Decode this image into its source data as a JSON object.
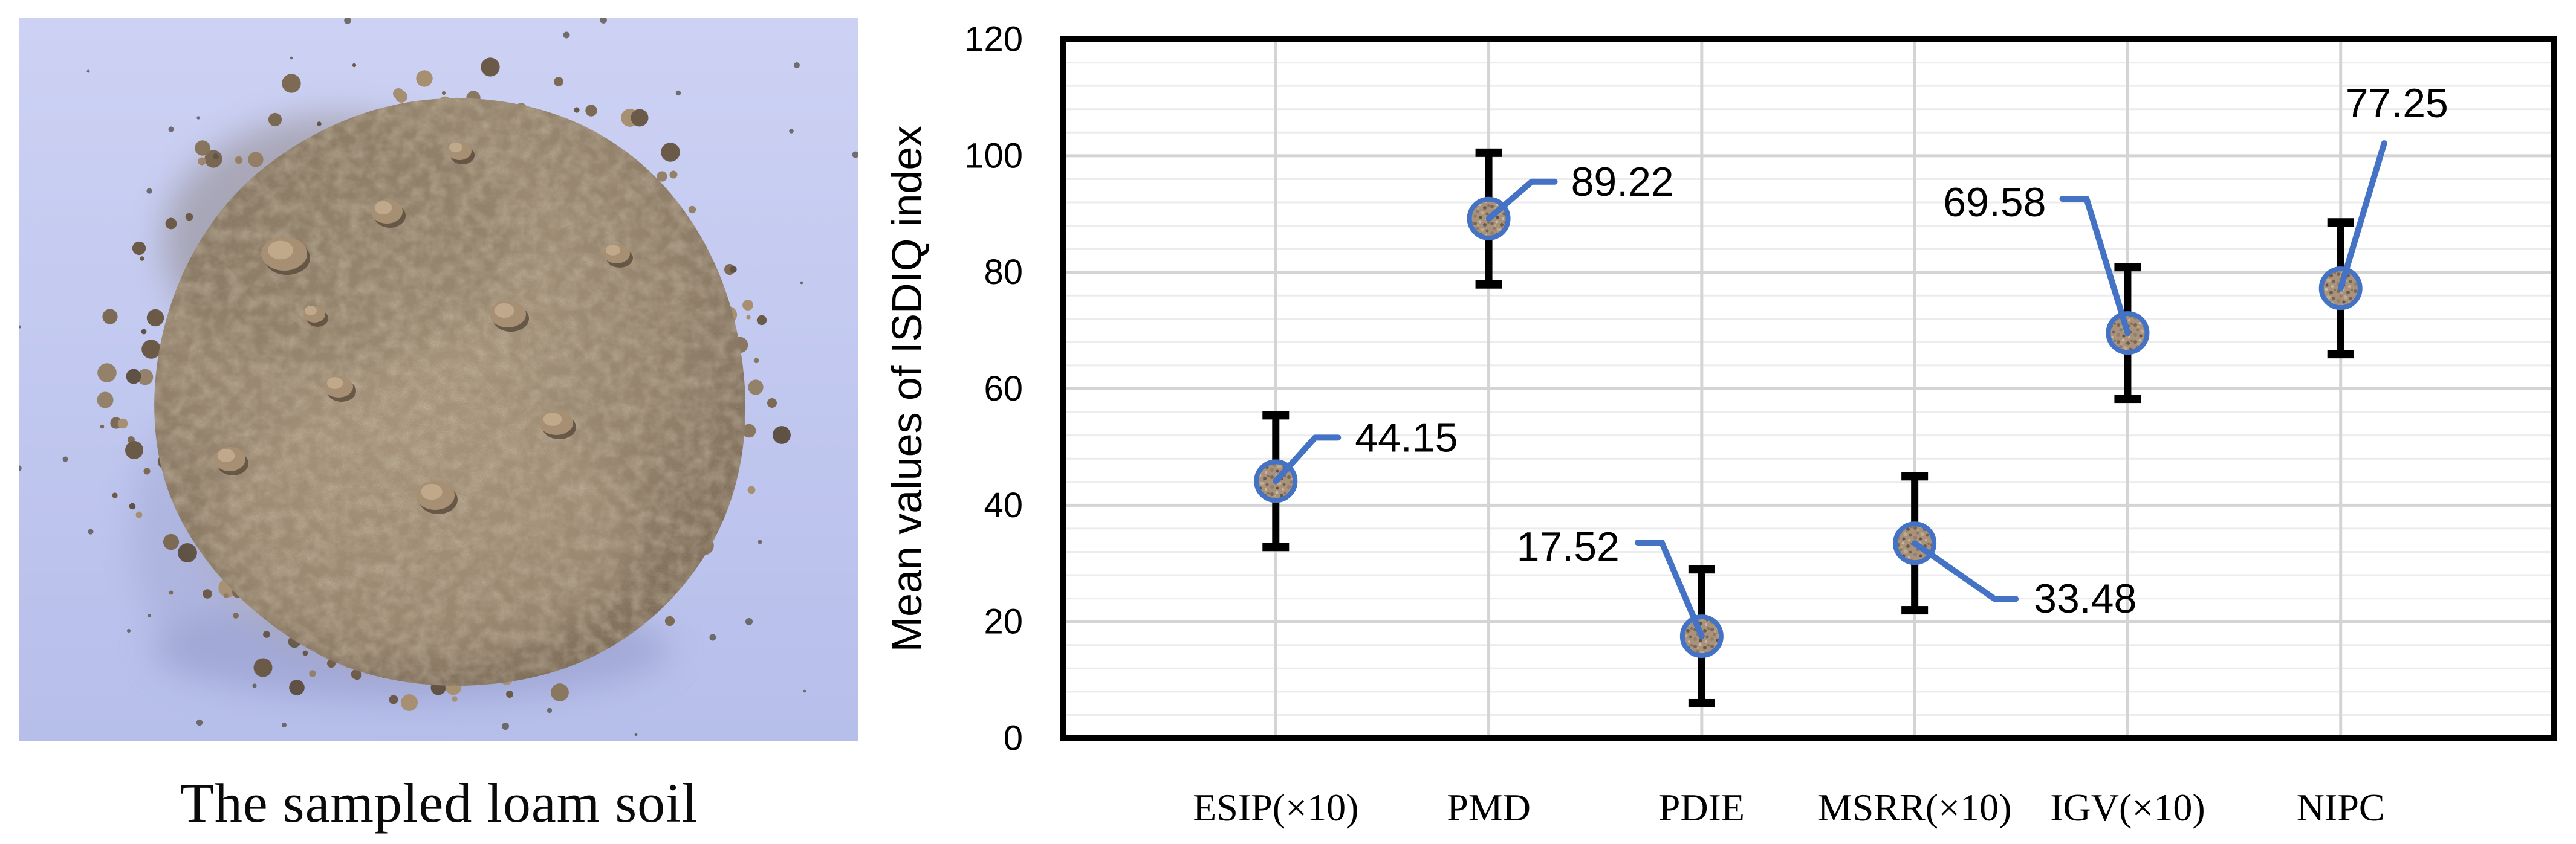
{
  "figure": {
    "photo_caption": "The sampled loam soil"
  },
  "chart_data": {
    "type": "scatter",
    "title": "",
    "xlabel": "",
    "ylabel": "Mean values of ISDIQ index",
    "categories": [
      "ESIP(×10)",
      "PMD",
      "PDIE",
      "MSRR(×10)",
      "IGV(×10)",
      "NIPC"
    ],
    "values": [
      44.15,
      89.22,
      17.52,
      33.48,
      69.58,
      77.25
    ],
    "error_bars": [
      11.3,
      11.3,
      11.5,
      11.5,
      11.3,
      11.3
    ],
    "data_labels": [
      "44.15",
      "89.22",
      "17.52",
      "33.48",
      "69.58",
      "77.25"
    ],
    "ylim": [
      0,
      120
    ],
    "yticks": [
      0,
      20,
      40,
      60,
      80,
      100,
      120
    ],
    "y_major_unit": 20,
    "y_minor_unit": 4,
    "grid": true,
    "legend": "none",
    "marker_style": "soil-textured circle",
    "colors": {
      "accent-blue": "#4472C4",
      "error-bar": "#000000",
      "grid-minor": "#ececec",
      "grid-major": "#d4d4d4",
      "plot-border": "#000000",
      "text": "#000000",
      "photo-bg-top": "#cdd2f4",
      "photo-bg-bottom": "#b6beea",
      "soil-light": "#b3a084",
      "soil-mid": "#94816a",
      "soil-dark": "#6b5a47",
      "soil-speck": "#4f4639",
      "marker-fill": "#a8927b"
    }
  }
}
